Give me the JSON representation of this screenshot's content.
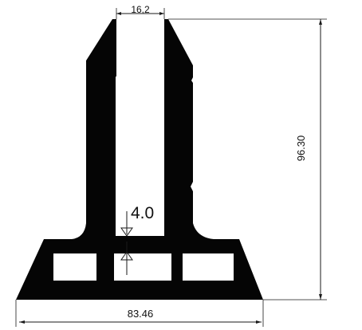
{
  "drawing": {
    "profile_color": "#050505",
    "void_color": "#ffffff",
    "line_color": "#1a1a1a"
  },
  "dimensions": {
    "top_gap": "16,2",
    "height": "96.30",
    "base_width": "83.46",
    "wall": "4.0"
  }
}
